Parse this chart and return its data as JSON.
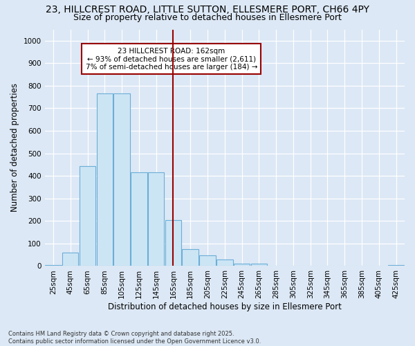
{
  "title_line1": "23, HILLCREST ROAD, LITTLE SUTTON, ELLESMERE PORT, CH66 4PY",
  "title_line2": "Size of property relative to detached houses in Ellesmere Port",
  "xlabel": "Distribution of detached houses by size in Ellesmere Port",
  "ylabel": "Number of detached properties",
  "bin_labels": [
    "25sqm",
    "45sqm",
    "65sqm",
    "85sqm",
    "105sqm",
    "125sqm",
    "145sqm",
    "165sqm",
    "185sqm",
    "205sqm",
    "225sqm",
    "245sqm",
    "265sqm",
    "285sqm",
    "305sqm",
    "325sqm",
    "345sqm",
    "365sqm",
    "385sqm",
    "405sqm",
    "425sqm"
  ],
  "counts": [
    5,
    60,
    445,
    765,
    765,
    415,
    415,
    205,
    75,
    48,
    28,
    10,
    10,
    0,
    0,
    0,
    0,
    0,
    0,
    0,
    3
  ],
  "bar_color": "#cce5f5",
  "bar_edge_color": "#6baed6",
  "vline_bin_index": 7,
  "vline_color": "#990000",
  "annotation_text": "23 HILLCREST ROAD: 162sqm\n← 93% of detached houses are smaller (2,611)\n7% of semi-detached houses are larger (184) →",
  "annotation_box_color": "#990000",
  "annotation_bg_color": "#ffffff",
  "ylim": [
    0,
    1050
  ],
  "yticks": [
    0,
    100,
    200,
    300,
    400,
    500,
    600,
    700,
    800,
    900,
    1000
  ],
  "footnote": "Contains HM Land Registry data © Crown copyright and database right 2025.\nContains public sector information licensed under the Open Government Licence v3.0.",
  "bg_color": "#dce8f5",
  "plot_bg_color": "#dce8f5",
  "grid_color": "#ffffff",
  "title_fontsize": 10,
  "subtitle_fontsize": 9,
  "tick_fontsize": 7.5,
  "label_fontsize": 8.5
}
